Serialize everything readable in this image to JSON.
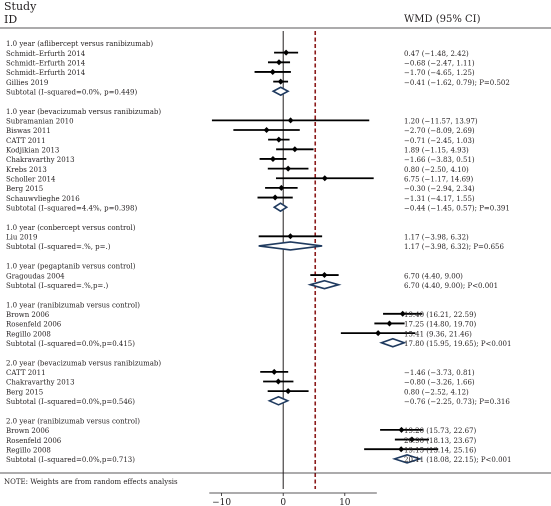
{
  "chart_data": {
    "type": "forest",
    "header_study_line1": "Study",
    "header_study_line2": "ID",
    "header_effect": "WMD (95% CI)",
    "note": "NOTE: Weights are from random effects analysis",
    "xlim": [
      -20,
      30
    ],
    "xticks": [
      {
        "value": -10,
        "label": "−10"
      },
      {
        "value": 0,
        "label": "0"
      },
      {
        "value": 10,
        "label": "10"
      }
    ],
    "null_line": 0,
    "overall_reference": 5.2,
    "rows": [
      {
        "type": "group",
        "label": "1.0 year (aflibercept versus ranibizumab)"
      },
      {
        "type": "study",
        "label": "Schmidt–Erfurth 2014",
        "est": 0.47,
        "lo": -1.48,
        "hi": 2.42,
        "ci": "0.47 (−1.48, 2.42)"
      },
      {
        "type": "study",
        "label": "Schmidt–Erfurth 2014",
        "est": -0.68,
        "lo": -2.47,
        "hi": 1.11,
        "ci": "−0.68 (−2.47, 1.11)"
      },
      {
        "type": "study",
        "label": "Schmidt–Erfurth 2014",
        "est": -1.7,
        "lo": -4.65,
        "hi": 1.25,
        "ci": "−1.70 (−4.65, 1.25)"
      },
      {
        "type": "study",
        "label": "Gillies 2019",
        "est": -0.41,
        "lo": -1.62,
        "hi": 0.79,
        "ci": "−0.41 (−1.62, 0.79); P=0.502",
        "noci": true
      },
      {
        "type": "subtotal",
        "label": "Subtotal (I–squared=0.0%, p=0.449)",
        "est": -0.41,
        "lo": -1.62,
        "hi": 0.79
      },
      {
        "type": "gap"
      },
      {
        "type": "group",
        "label": "1.0 year (bevacizumab versus ranibizumab)"
      },
      {
        "type": "study",
        "label": "Subramanian 2010",
        "est": 1.2,
        "lo": -11.57,
        "hi": 13.97,
        "ci": "1.20 (−11.57, 13.97)"
      },
      {
        "type": "study",
        "label": "Biswas 2011",
        "est": -2.7,
        "lo": -8.09,
        "hi": 2.69,
        "ci": "−2.70 (−8.09, 2.69)"
      },
      {
        "type": "study",
        "label": "CATT 2011",
        "est": -0.71,
        "lo": -2.45,
        "hi": 1.03,
        "ci": "−0.71 (−2.45, 1.03)"
      },
      {
        "type": "study",
        "label": "Kodjikian 2013",
        "est": 1.89,
        "lo": -1.15,
        "hi": 4.93,
        "ci": "1.89 (−1.15, 4.93)"
      },
      {
        "type": "study",
        "label": "Chakravarthy 2013",
        "est": -1.66,
        "lo": -3.83,
        "hi": 0.51,
        "ci": "−1.66 (−3.83, 0.51)"
      },
      {
        "type": "study",
        "label": "Krebs 2013",
        "est": 0.8,
        "lo": -2.5,
        "hi": 4.1,
        "ci": "0.80 (−2.50, 4.10)"
      },
      {
        "type": "study",
        "label": "Scholler 2014",
        "est": 6.75,
        "lo": -1.17,
        "hi": 14.69,
        "ci": "6.75 (−1.17, 14.69)"
      },
      {
        "type": "study",
        "label": "Berg 2015",
        "est": -0.3,
        "lo": -2.94,
        "hi": 2.34,
        "ci": "−0.30 (−2.94, 2.34)"
      },
      {
        "type": "study",
        "label": "Schauwvlieghe 2016",
        "est": -1.31,
        "lo": -4.17,
        "hi": 1.55,
        "ci": "−1.31 (−4.17, 1.55)"
      },
      {
        "type": "subtotal",
        "label": "Subtotal (I–squared=4.4%, p=0.398)",
        "est": -0.44,
        "lo": -1.45,
        "hi": 0.57,
        "ci": "−0.44 (−1.45, 0.57); P=0.391"
      },
      {
        "type": "gap"
      },
      {
        "type": "group",
        "label": "1.0 year (conbercept versus control)"
      },
      {
        "type": "study",
        "label": "Liu 2019",
        "est": 1.17,
        "lo": -3.98,
        "hi": 6.32,
        "ci": "1.17 (−3.98, 6.32)"
      },
      {
        "type": "subtotal",
        "label": "Subtotal (I–squared=.%, p=.)",
        "est": 1.17,
        "lo": -3.98,
        "hi": 6.32,
        "ci": "1.17 (−3.98, 6.32); P=0.656"
      },
      {
        "type": "gap"
      },
      {
        "type": "group",
        "label": "1.0 year (pegaptanib versus control)"
      },
      {
        "type": "study",
        "label": "Gragoudas 2004",
        "est": 6.7,
        "lo": 4.4,
        "hi": 9.0,
        "ci": "6.70 (4.40, 9.00)"
      },
      {
        "type": "subtotal",
        "label": "Subtotal (I–squared=.%,p=.)",
        "est": 6.7,
        "lo": 4.4,
        "hi": 9.0,
        "ci": "6.70 (4.40, 9.00); P<0.001"
      },
      {
        "type": "gap"
      },
      {
        "type": "group",
        "label": "1.0 year (ranibizumab versus control)"
      },
      {
        "type": "study",
        "label": "Brown 2006",
        "est": 19.4,
        "lo": 16.21,
        "hi": 22.59,
        "ci": "19.40 (16.21, 22.59)"
      },
      {
        "type": "study",
        "label": "Rosenfeld 2006",
        "est": 17.25,
        "lo": 14.8,
        "hi": 19.7,
        "ci": "17.25 (14.80, 19.70)"
      },
      {
        "type": "study",
        "label": "Regillo 2008",
        "est": 15.41,
        "lo": 9.36,
        "hi": 21.46,
        "ci": "15.41 (9.36, 21.46)"
      },
      {
        "type": "subtotal",
        "label": "Subtotal (I–squared=0.0%,p=0.415)",
        "est": 17.8,
        "lo": 15.95,
        "hi": 19.65,
        "ci": "17.80 (15.95, 19.65); P<0.001"
      },
      {
        "type": "gap"
      },
      {
        "type": "group",
        "label": "2.0 year (bevacizumab versus ranibizumab)"
      },
      {
        "type": "study",
        "label": "CATT 2011",
        "est": -1.46,
        "lo": -3.73,
        "hi": 0.81,
        "ci": "−1.46 (−3.73, 0.81)"
      },
      {
        "type": "study",
        "label": "Chakravarthy 2013",
        "est": -0.8,
        "lo": -3.26,
        "hi": 1.66,
        "ci": "−0.80 (−3.26, 1.66)"
      },
      {
        "type": "study",
        "label": "Berg 2015",
        "est": 0.8,
        "lo": -2.52,
        "hi": 4.12,
        "ci": "0.80 (−2.52, 4.12)"
      },
      {
        "type": "subtotal",
        "label": "Subtotal (I–squared=0.0%,p=0.546)",
        "est": -0.76,
        "lo": -2.25,
        "hi": 0.73,
        "ci": "−0.76 (−2.25, 0.73); P=0.316"
      },
      {
        "type": "gap"
      },
      {
        "type": "group",
        "label": "2.0 year (ranibizumab versus control)"
      },
      {
        "type": "study",
        "label": "Brown 2006",
        "est": 19.2,
        "lo": 15.73,
        "hi": 22.67,
        "ci": "19.20 (15.73, 22.67)"
      },
      {
        "type": "study",
        "label": "Rosenfeld 2006",
        "est": 20.9,
        "lo": 18.13,
        "hi": 23.67,
        "ci": "20.90 (18.13, 23.67)"
      },
      {
        "type": "study",
        "label": "Regillo 2008",
        "est": 19.15,
        "lo": 13.14,
        "hi": 25.16,
        "ci": "19.15 (13.14, 25.16)"
      },
      {
        "type": "subtotal",
        "label": "Subtotal (I–squared=0.0%,p=0.713)",
        "est": 20.11,
        "lo": 18.08,
        "hi": 22.15,
        "ci": "20.11 (18.08, 22.15); P<0.001"
      }
    ]
  }
}
